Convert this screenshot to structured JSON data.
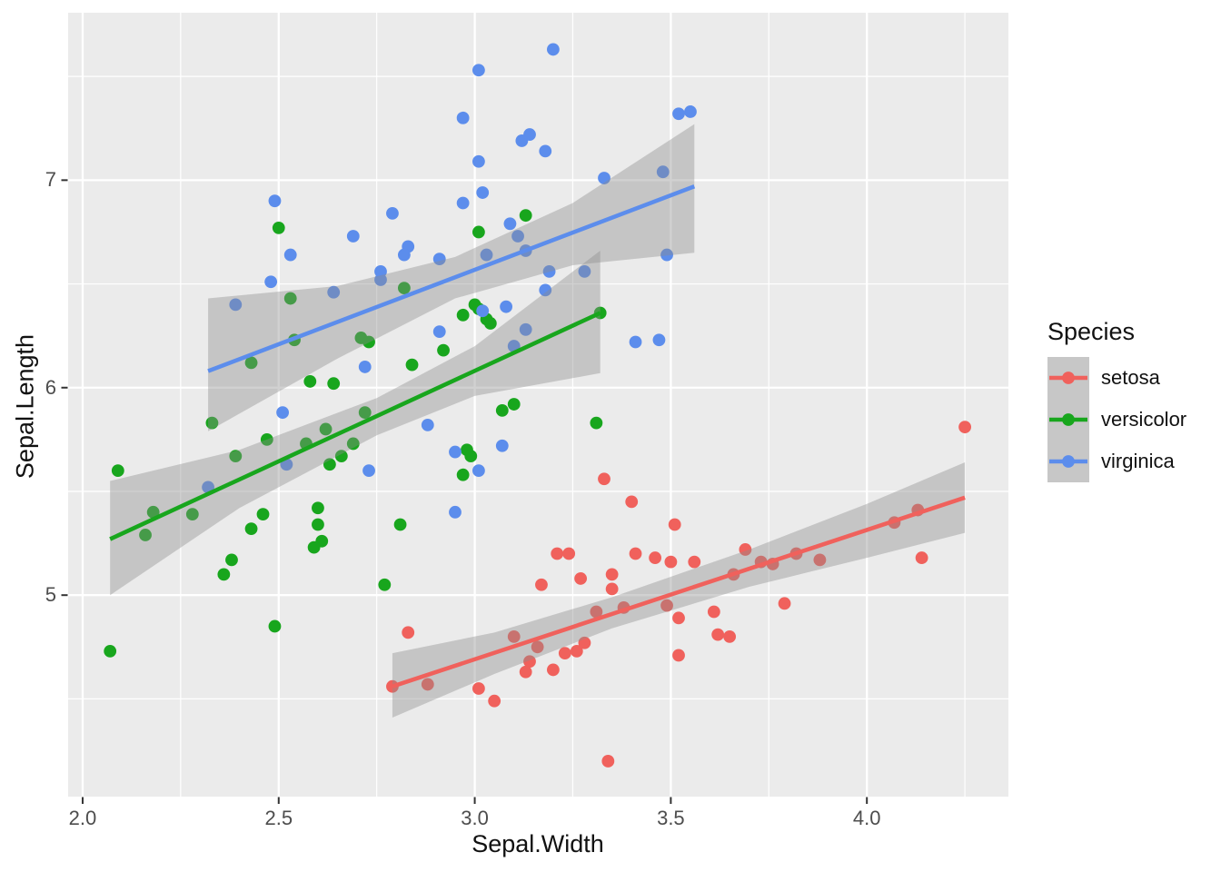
{
  "axes": {
    "x": {
      "title": "Sepal.Width",
      "tick_labels": [
        "2.0",
        "2.5",
        "3.0",
        "3.5",
        "4.0"
      ],
      "tick_values": [
        2.0,
        2.5,
        3.0,
        3.5,
        4.0
      ],
      "minor_values": [
        2.25,
        2.75,
        3.25,
        3.75,
        4.25
      ]
    },
    "y": {
      "title": "Sepal.Length",
      "tick_labels": [
        "5",
        "6",
        "7"
      ],
      "tick_values": [
        5,
        6,
        7
      ],
      "minor_values": [
        4.5,
        5.5,
        6.5,
        7.5
      ]
    }
  },
  "legend": {
    "title": "Species",
    "entries": [
      {
        "label": "setosa",
        "color": "#F0615C"
      },
      {
        "label": "versicolor",
        "color": "#18A61D"
      },
      {
        "label": "virginica",
        "color": "#5C8DEC"
      }
    ]
  },
  "style": {
    "panel_bg": "#EBEBEB",
    "grid_color": "#FFFFFF",
    "tick_mark_color": "#333333",
    "tick_label_color": "#4D4D4D",
    "axis_title_color": "#111111",
    "band_color": "#8C8C8C",
    "band_alpha": 0.4,
    "legend_key_bg": "#C7C7C7"
  },
  "chart_data": {
    "type": "scatter",
    "title": "",
    "xlabel": "Sepal.Width",
    "ylabel": "Sepal.Length",
    "xlim": [
      1.963,
      4.361
    ],
    "ylim": [
      4.029,
      7.807
    ],
    "x_ticks": [
      2.0,
      2.5,
      3.0,
      3.5,
      4.0
    ],
    "y_ticks": [
      5,
      6,
      7
    ],
    "grid": "on",
    "legend_position": "right",
    "legend_title": "Species",
    "series": [
      {
        "name": "setosa",
        "color": "#F0615C",
        "points": [
          [
            4.25,
            5.81
          ],
          [
            3.33,
            5.56
          ],
          [
            3.4,
            5.45
          ],
          [
            3.51,
            5.34
          ],
          [
            3.21,
            5.2
          ],
          [
            3.24,
            5.2
          ],
          [
            3.27,
            5.08
          ],
          [
            3.41,
            5.2
          ],
          [
            3.46,
            5.18
          ],
          [
            3.5,
            5.16
          ],
          [
            3.56,
            5.16
          ],
          [
            3.35,
            5.1
          ],
          [
            3.35,
            5.03
          ],
          [
            3.17,
            5.05
          ],
          [
            2.83,
            4.82
          ],
          [
            2.79,
            4.56
          ],
          [
            2.88,
            4.57
          ],
          [
            3.01,
            4.55
          ],
          [
            3.05,
            4.49
          ],
          [
            3.1,
            4.8
          ],
          [
            3.14,
            4.68
          ],
          [
            3.16,
            4.75
          ],
          [
            3.13,
            4.63
          ],
          [
            3.2,
            4.64
          ],
          [
            3.23,
            4.72
          ],
          [
            3.26,
            4.73
          ],
          [
            3.28,
            4.77
          ],
          [
            3.31,
            4.92
          ],
          [
            3.38,
            4.94
          ],
          [
            3.49,
            4.95
          ],
          [
            3.52,
            4.89
          ],
          [
            3.52,
            4.71
          ],
          [
            3.34,
            4.2
          ],
          [
            3.69,
            5.22
          ],
          [
            3.66,
            5.1
          ],
          [
            3.73,
            5.16
          ],
          [
            3.76,
            5.15
          ],
          [
            3.82,
            5.2
          ],
          [
            3.88,
            5.17
          ],
          [
            4.07,
            5.35
          ],
          [
            4.13,
            5.41
          ],
          [
            4.14,
            5.18
          ],
          [
            3.79,
            4.96
          ],
          [
            3.61,
            4.92
          ],
          [
            3.62,
            4.81
          ],
          [
            3.65,
            4.8
          ]
        ],
        "regression": {
          "x1": 2.79,
          "y1": 4.56,
          "x2": 4.25,
          "y2": 5.47
        },
        "band": {
          "x": [
            2.79,
            3.05,
            3.35,
            3.7,
            4.0,
            4.25
          ],
          "top": [
            4.72,
            4.82,
            4.99,
            5.22,
            5.44,
            5.64
          ],
          "bottom": [
            4.41,
            4.62,
            4.84,
            5.04,
            5.18,
            5.3
          ]
        }
      },
      {
        "name": "versicolor",
        "color": "#18A61D",
        "points": [
          [
            2.5,
            6.77
          ],
          [
            2.53,
            6.43
          ],
          [
            2.54,
            6.23
          ],
          [
            2.43,
            6.12
          ],
          [
            2.71,
            6.24
          ],
          [
            2.73,
            6.22
          ],
          [
            2.58,
            6.03
          ],
          [
            2.64,
            6.02
          ],
          [
            3.13,
            6.83
          ],
          [
            3.01,
            6.75
          ],
          [
            2.82,
            6.48
          ],
          [
            3.0,
            6.4
          ],
          [
            3.01,
            6.38
          ],
          [
            2.97,
            6.35
          ],
          [
            3.03,
            6.33
          ],
          [
            3.04,
            6.31
          ],
          [
            2.92,
            6.18
          ],
          [
            2.84,
            6.11
          ],
          [
            3.1,
            5.92
          ],
          [
            3.07,
            5.89
          ],
          [
            2.72,
            5.88
          ],
          [
            2.33,
            5.83
          ],
          [
            2.47,
            5.75
          ],
          [
            2.39,
            5.67
          ],
          [
            2.57,
            5.73
          ],
          [
            2.62,
            5.8
          ],
          [
            2.69,
            5.73
          ],
          [
            2.66,
            5.67
          ],
          [
            2.63,
            5.63
          ],
          [
            2.09,
            5.6
          ],
          [
            2.18,
            5.4
          ],
          [
            2.28,
            5.39
          ],
          [
            2.16,
            5.29
          ],
          [
            2.46,
            5.39
          ],
          [
            2.43,
            5.32
          ],
          [
            2.6,
            5.42
          ],
          [
            2.6,
            5.34
          ],
          [
            2.61,
            5.26
          ],
          [
            2.59,
            5.23
          ],
          [
            2.38,
            5.17
          ],
          [
            2.36,
            5.1
          ],
          [
            2.77,
            5.05
          ],
          [
            2.49,
            4.85
          ],
          [
            2.07,
            4.73
          ],
          [
            3.31,
            5.83
          ],
          [
            2.98,
            5.7
          ],
          [
            2.99,
            5.67
          ],
          [
            2.97,
            5.58
          ],
          [
            2.81,
            5.34
          ],
          [
            3.32,
            6.36
          ]
        ],
        "regression": {
          "x1": 2.07,
          "y1": 5.27,
          "x2": 3.32,
          "y2": 6.36
        },
        "band": {
          "x": [
            2.07,
            2.4,
            2.75,
            3.0,
            3.32
          ],
          "top": [
            5.55,
            5.7,
            5.95,
            6.2,
            6.66
          ],
          "bottom": [
            5.0,
            5.42,
            5.77,
            5.96,
            6.07
          ]
        }
      },
      {
        "name": "virginica",
        "color": "#5C8DEC",
        "points": [
          [
            3.2,
            7.63
          ],
          [
            3.01,
            7.53
          ],
          [
            2.97,
            7.3
          ],
          [
            3.12,
            7.19
          ],
          [
            3.14,
            7.22
          ],
          [
            3.18,
            7.14
          ],
          [
            3.01,
            7.09
          ],
          [
            3.52,
            7.32
          ],
          [
            3.55,
            7.33
          ],
          [
            3.48,
            7.04
          ],
          [
            3.33,
            7.01
          ],
          [
            3.02,
            6.94
          ],
          [
            2.97,
            6.89
          ],
          [
            2.79,
            6.84
          ],
          [
            2.49,
            6.9
          ],
          [
            2.53,
            6.64
          ],
          [
            2.69,
            6.73
          ],
          [
            2.48,
            6.51
          ],
          [
            2.39,
            6.4
          ],
          [
            2.64,
            6.46
          ],
          [
            3.09,
            6.79
          ],
          [
            3.11,
            6.73
          ],
          [
            2.83,
            6.68
          ],
          [
            2.82,
            6.64
          ],
          [
            3.13,
            6.66
          ],
          [
            3.03,
            6.64
          ],
          [
            2.91,
            6.62
          ],
          [
            3.49,
            6.64
          ],
          [
            2.76,
            6.56
          ],
          [
            2.76,
            6.52
          ],
          [
            3.19,
            6.56
          ],
          [
            3.28,
            6.56
          ],
          [
            3.18,
            6.47
          ],
          [
            3.02,
            6.37
          ],
          [
            3.08,
            6.39
          ],
          [
            3.13,
            6.28
          ],
          [
            2.91,
            6.27
          ],
          [
            3.41,
            6.22
          ],
          [
            3.47,
            6.23
          ],
          [
            3.1,
            6.2
          ],
          [
            2.72,
            6.1
          ],
          [
            2.51,
            5.88
          ],
          [
            2.88,
            5.82
          ],
          [
            2.95,
            5.69
          ],
          [
            3.07,
            5.72
          ],
          [
            3.01,
            5.6
          ],
          [
            2.95,
            5.4
          ],
          [
            2.52,
            5.63
          ],
          [
            2.73,
            5.6
          ],
          [
            2.32,
            5.52
          ]
        ],
        "regression": {
          "x1": 2.32,
          "y1": 6.08,
          "x2": 3.56,
          "y2": 6.97
        },
        "band": {
          "x": [
            2.32,
            2.65,
            2.95,
            3.25,
            3.56
          ],
          "top": [
            6.43,
            6.49,
            6.63,
            6.89,
            7.27
          ],
          "bottom": [
            5.79,
            6.14,
            6.43,
            6.59,
            6.65
          ]
        }
      }
    ]
  }
}
